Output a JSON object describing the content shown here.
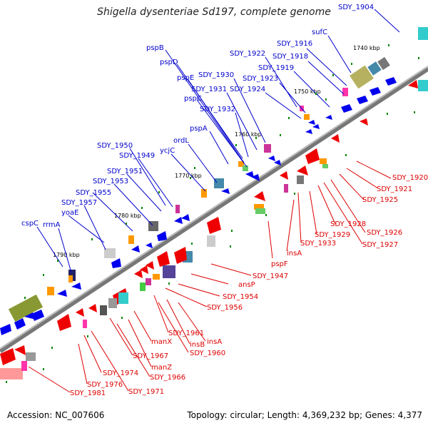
{
  "title": "Shigella dysenteriae Sd197, complete genome",
  "footer": {
    "accession": "Accession: NC_007606",
    "topology": "Topology: circular; Length: 4,369,232 bp; Genes: 4,377"
  },
  "colors": {
    "forward_strand": "#0000ee",
    "reverse_strand": "#ee0000",
    "backbone": "#888888",
    "forward_label": "#0000cc",
    "reverse_label": "#dd0000",
    "tick": "#008800"
  },
  "kbp_ticks": [
    "1740 kbp",
    "1750 kbp",
    "1760 kbp",
    "1770 kbp",
    "1780 kbp",
    "1790 kbp"
  ],
  "forward_labels": [
    "SDY_1904",
    "sufC",
    "SDY_1916",
    "SDY_1918",
    "SDY_1919",
    "SDY_1922",
    "SDY_1923",
    "SDY_1924",
    "SDY_1930",
    "SDY_1931",
    "SDY_1932",
    "pspB",
    "pspD",
    "pspE",
    "pspC",
    "pspA",
    "ordL",
    "ycjC",
    "SDY_1950",
    "SDY_1949",
    "SDY_1951",
    "SDY_1953",
    "SDY_1955",
    "SDY_1957",
    "yoaE",
    "cspC",
    "rrmA"
  ],
  "reverse_labels": [
    "SDY_1920",
    "SDY_1921",
    "SDY_1925",
    "SDY_1926",
    "SDY_1927",
    "SDY_1928",
    "SDY_1929",
    "SDY_1933",
    "insA",
    "pspF",
    "SDY_1947",
    "ansP",
    "SDY_1954",
    "SDY_1956",
    "SDY_1961",
    "insA",
    "insB",
    "SDY_1960",
    "manX",
    "SDY_1967",
    "manZ",
    "SDY_1966",
    "SDY_1974",
    "SDY_1976",
    "SDY_1971",
    "SDY_1981"
  ]
}
